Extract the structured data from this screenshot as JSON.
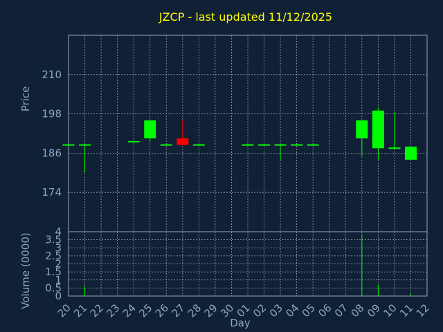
{
  "chart_data": [
    {
      "type": "candlestick",
      "title": "JZCP - last updated 11/12/2025",
      "ylabel": "Price",
      "ylim": [
        162,
        222
      ],
      "yticks": [
        174,
        186,
        198,
        210
      ],
      "categories": [
        "20",
        "21",
        "22",
        "23",
        "24",
        "25",
        "26",
        "27",
        "28",
        "29",
        "30",
        "01",
        "02",
        "03",
        "04",
        "05",
        "06",
        "07",
        "08",
        "09",
        "10",
        "11",
        "12"
      ],
      "colors": {
        "up": "#00ff00",
        "down": "#ff0000",
        "title": "#ffff00",
        "background": "#102035"
      },
      "candles": [
        {
          "i": 0,
          "open": 188.5,
          "close": 188.5,
          "high": 188.5,
          "low": 188.5
        },
        {
          "i": 1,
          "open": 188.5,
          "close": 188.5,
          "high": 188.5,
          "low": 180.0
        },
        {
          "i": 4,
          "open": 189.5,
          "close": 189.5,
          "high": 190.0,
          "low": 189.5
        },
        {
          "i": 5,
          "open": 190.5,
          "close": 196.0,
          "high": 196.0,
          "low": 189.5
        },
        {
          "i": 6,
          "open": 188.5,
          "close": 188.5,
          "high": 188.5,
          "low": 188.5
        },
        {
          "i": 7,
          "open": 190.5,
          "close": 188.5,
          "high": 196.0,
          "low": 188.5
        },
        {
          "i": 8,
          "open": 188.5,
          "close": 188.5,
          "high": 188.5,
          "low": 188.5
        },
        {
          "i": 11,
          "open": 188.5,
          "close": 188.5,
          "high": 188.5,
          "low": 188.5
        },
        {
          "i": 12,
          "open": 188.5,
          "close": 188.5,
          "high": 188.5,
          "low": 188.5
        },
        {
          "i": 13,
          "open": 188.5,
          "close": 188.5,
          "high": 188.5,
          "low": 184.0
        },
        {
          "i": 14,
          "open": 188.5,
          "close": 188.5,
          "high": 188.5,
          "low": 188.5
        },
        {
          "i": 15,
          "open": 188.5,
          "close": 188.5,
          "high": 188.5,
          "low": 188.5
        },
        {
          "i": 18,
          "open": 190.5,
          "close": 196.0,
          "high": 196.0,
          "low": 185.0
        },
        {
          "i": 19,
          "open": 187.5,
          "close": 199.0,
          "high": 200.0,
          "low": 184.0
        },
        {
          "i": 20,
          "open": 187.5,
          "close": 187.5,
          "high": 198.5,
          "low": 187.5
        },
        {
          "i": 21,
          "open": 184.0,
          "close": 188.0,
          "high": 188.0,
          "low": 184.0
        }
      ]
    },
    {
      "type": "bar",
      "ylabel": "Volume (0000)",
      "xlabel": "Day",
      "ylim": [
        0,
        4
      ],
      "yticks": [
        "0",
        "0.5",
        "1",
        "1.5",
        "2",
        "2.5",
        "3",
        "3.5",
        "4"
      ],
      "categories": [
        "20",
        "21",
        "22",
        "23",
        "24",
        "25",
        "26",
        "27",
        "28",
        "29",
        "30",
        "01",
        "02",
        "03",
        "04",
        "05",
        "06",
        "07",
        "08",
        "09",
        "10",
        "11",
        "12"
      ],
      "volumes": [
        {
          "i": 1,
          "value": 0.6
        },
        {
          "i": 18,
          "value": 3.8
        },
        {
          "i": 19,
          "value": 0.7
        },
        {
          "i": 21,
          "value": 0.15
        }
      ]
    }
  ]
}
